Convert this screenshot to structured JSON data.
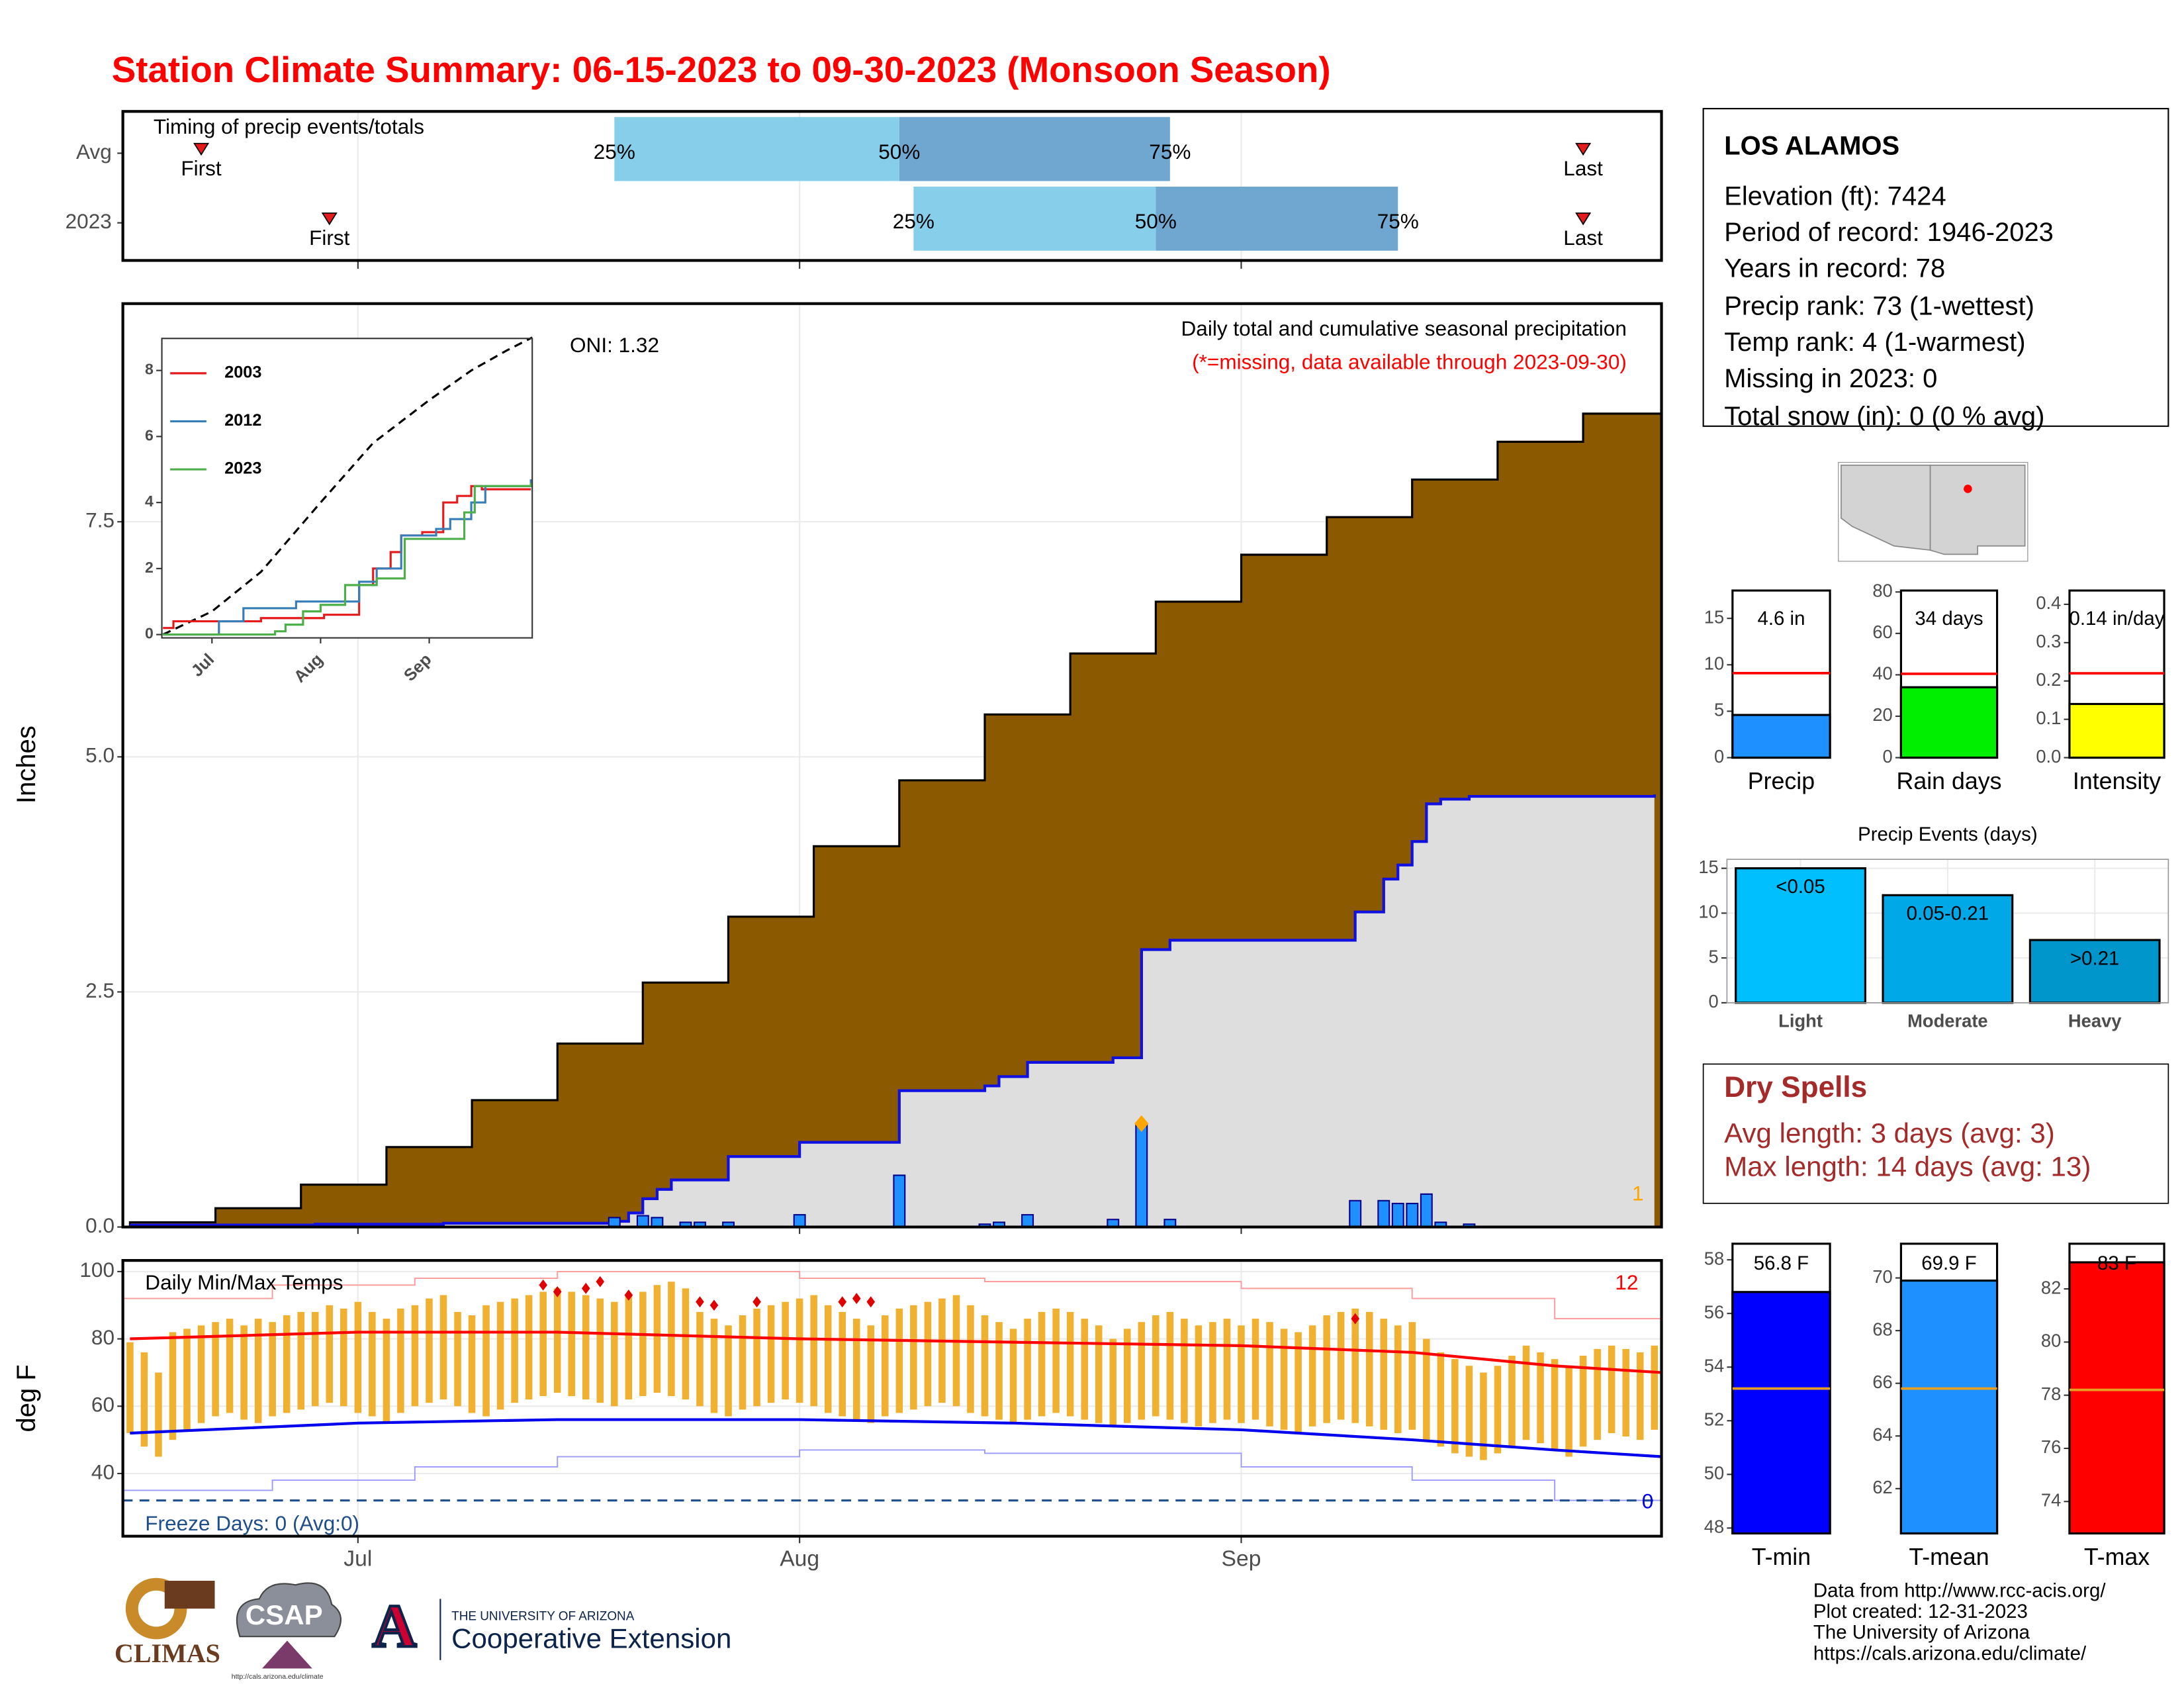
{
  "title": "Station Climate Summary: 06-15-2023 to 09-30-2023 (Monsoon Season)",
  "station_box": {
    "name": "LOS ALAMOS",
    "lines": [
      "Elevation (ft): 7424",
      "Period of record: 1946-2023",
      "Years in record: 78",
      "Precip rank: 73 (1-wettest)",
      "Temp rank: 4 (1-warmest)",
      "Missing in 2023: 0",
      "Total snow (in): 0 (0 % avg)"
    ]
  },
  "dry_spells": {
    "title": "Dry Spells",
    "lines": [
      "Avg length: 3 days (avg: 3)",
      "Max length: 14 days (avg: 13)"
    ]
  },
  "footer": [
    "Data from http://www.rcc-acis.org/",
    "Plot created: 12-31-2023",
    "The University of Arizona",
    "https://cals.arizona.edu/climate/"
  ],
  "logos": {
    "climas": "CLIMAS",
    "csap": "CSAP",
    "csap_url": "http://cals.arizona.edu/climate",
    "arizona": "A",
    "university": "THE UNIVERSITY OF ARIZONA",
    "extension": "Cooperative Extension"
  },
  "chart_data": [
    {
      "type": "timing",
      "title": "Timing of precip events/totals",
      "xlim": [
        -0.5,
        107.5
      ],
      "categories": [
        "Avg",
        "2023"
      ],
      "labels": {
        "first": "First",
        "p25": "25%",
        "p50": "50%",
        "p75": "75%",
        "last": "Last"
      },
      "rows": [
        {
          "first": 5,
          "p25": 34,
          "p50": 54,
          "p75": 73,
          "last": 102
        },
        {
          "first": 14,
          "p25": 55,
          "p50": 72,
          "p75": 89,
          "last": 102
        }
      ],
      "colors": [
        "#87ceeb",
        "#6fa7d0"
      ],
      "marker_color": "#e41a1c"
    },
    {
      "type": "cumulative",
      "annotation": "Daily total and cumulative seasonal precipitation",
      "note": "(*=missing, data available through 2023-09-30)",
      "oni": "ONI: 1.32",
      "ylabel": "Inches",
      "record_count": 1,
      "xlim": [
        -0.5,
        107.5
      ],
      "ylim": [
        0,
        9.82
      ],
      "yticks": [
        {
          "value": 0,
          "label": "0.0"
        },
        2.5,
        {
          "value": 5,
          "label": "5.0"
        },
        7.5
      ],
      "xticks": [
        {
          "value": 16,
          "label": "Jul"
        },
        {
          "value": 47,
          "label": "Aug"
        },
        {
          "value": 78,
          "label": "Sep"
        }
      ],
      "average": {
        "color": "#8b5a00",
        "x": [
          0,
          6,
          12,
          18,
          24,
          30,
          36,
          42,
          48,
          54,
          60,
          66,
          72,
          78,
          84,
          90,
          96,
          102,
          107.5
        ],
        "values": [
          0.05,
          0.2,
          0.45,
          0.85,
          1.35,
          1.95,
          2.6,
          3.3,
          4.05,
          4.75,
          5.45,
          6.1,
          6.65,
          7.15,
          7.55,
          7.95,
          8.35,
          8.65,
          8.93
        ]
      },
      "observed": {
        "color": "#dedede",
        "line_color": "#1010e0",
        "x": [
          0,
          13,
          22,
          34,
          35,
          36,
          37,
          38,
          42,
          47,
          54,
          60,
          61,
          63,
          69,
          71,
          73,
          86,
          88,
          89,
          90,
          91,
          92,
          94,
          107
        ],
        "values": [
          0.02,
          0.03,
          0.04,
          0.06,
          0.15,
          0.3,
          0.4,
          0.5,
          0.75,
          0.9,
          1.45,
          1.5,
          1.6,
          1.75,
          1.8,
          2.95,
          3.05,
          3.35,
          3.7,
          3.85,
          4.1,
          4.5,
          4.55,
          4.58,
          4.6
        ]
      },
      "daily": {
        "color": "#1e90ff",
        "peak_color": "#ffa500",
        "x": [
          34,
          36,
          37,
          39,
          40,
          42,
          47,
          54,
          60,
          61,
          63,
          69,
          71,
          73,
          86,
          88,
          89,
          90,
          91,
          92,
          94
        ],
        "values": [
          0.1,
          0.12,
          0.1,
          0.05,
          0.05,
          0.05,
          0.13,
          0.55,
          0.03,
          0.05,
          0.13,
          0.08,
          1.1,
          0.08,
          0.28,
          0.28,
          0.25,
          0.25,
          0.35,
          0.05,
          0.03
        ]
      }
    },
    {
      "type": "line",
      "xlim": [
        1.7,
        107.4
      ],
      "ylim": [
        -0.1,
        8.97
      ],
      "yticks": [
        0,
        2,
        4,
        6,
        8
      ],
      "xticks": [
        {
          "value": 16,
          "label": "Jul"
        },
        {
          "value": 47,
          "label": "Aug"
        },
        {
          "value": 78,
          "label": "Sep"
        }
      ],
      "series": [
        {
          "name": "2003",
          "color": "#e41a1c",
          "x": [
            2,
            5,
            30,
            48,
            58,
            62,
            67,
            70,
            76,
            82,
            86,
            90,
            93,
            107
          ],
          "values": [
            0.2,
            0.4,
            0.5,
            0.6,
            1.5,
            2.0,
            2.5,
            3.0,
            3.1,
            4.0,
            4.2,
            4.5,
            4.4,
            4.4
          ]
        },
        {
          "name": "2012",
          "color": "#377eb8",
          "x": [
            2,
            18,
            25,
            40,
            58,
            63,
            70,
            80,
            84,
            90,
            94,
            107
          ],
          "values": [
            0,
            0.4,
            0.8,
            1.0,
            1.6,
            2.0,
            3.0,
            3.2,
            3.5,
            4.0,
            4.5,
            4.7
          ]
        },
        {
          "name": "2023",
          "color": "#4daf4a",
          "x": [
            2,
            34,
            37,
            42,
            47,
            54,
            63,
            71,
            88,
            91,
            107
          ],
          "values": [
            0,
            0.1,
            0.3,
            0.7,
            0.9,
            1.5,
            1.7,
            2.9,
            3.7,
            4.5,
            4.6
          ]
        }
      ],
      "average": {
        "color": "#000000",
        "x": [
          2,
          16,
          30,
          47,
          62,
          78,
          90,
          100,
          107.4
        ],
        "values": [
          0,
          0.7,
          1.9,
          4.0,
          5.8,
          7.1,
          8.0,
          8.6,
          9.0
        ]
      }
    },
    {
      "type": "temperature",
      "title": "Daily Min/Max Temps",
      "ylabel": "deg F",
      "record_count": 12,
      "xlim": [
        -0.5,
        107.5
      ],
      "ylim": [
        21.38,
        103.31
      ],
      "yticks": [
        40,
        60,
        80,
        100
      ],
      "xticks": [
        {
          "value": 16,
          "label": "Jul"
        },
        {
          "value": 47,
          "label": "Aug"
        },
        {
          "value": 78,
          "label": "Sep"
        }
      ],
      "daily": {
        "color": "#f0b030",
        "x": [
          0,
          1,
          2,
          3,
          4,
          5,
          6,
          7,
          8,
          9,
          10,
          11,
          12,
          13,
          14,
          15,
          16,
          17,
          18,
          19,
          20,
          21,
          22,
          23,
          24,
          25,
          26,
          27,
          28,
          29,
          30,
          31,
          32,
          33,
          34,
          35,
          36,
          37,
          38,
          39,
          40,
          41,
          42,
          43,
          44,
          45,
          46,
          47,
          48,
          49,
          50,
          51,
          52,
          53,
          54,
          55,
          56,
          57,
          58,
          59,
          60,
          61,
          62,
          63,
          64,
          65,
          66,
          67,
          68,
          69,
          70,
          71,
          72,
          73,
          74,
          75,
          76,
          77,
          78,
          79,
          80,
          81,
          82,
          83,
          84,
          85,
          86,
          87,
          88,
          89,
          90,
          91,
          92,
          93,
          94,
          95,
          96,
          97,
          98,
          99,
          100,
          101,
          102,
          103,
          104,
          105,
          106,
          107
        ],
        "max": [
          79,
          76,
          70,
          82,
          83,
          84,
          85,
          86,
          84,
          86,
          85,
          87,
          88,
          88,
          90,
          89,
          91,
          88,
          86,
          89,
          90,
          92,
          93,
          88,
          87,
          90,
          91,
          92,
          93,
          94,
          95,
          94,
          93,
          92,
          91,
          93,
          94,
          96,
          97,
          95,
          88,
          86,
          84,
          87,
          89,
          90,
          91,
          92,
          93,
          90,
          88,
          86,
          84,
          87,
          89,
          90,
          91,
          92,
          93,
          90,
          87,
          85,
          83,
          86,
          88,
          89,
          88,
          86,
          84,
          80,
          83,
          85,
          87,
          88,
          86,
          84,
          85,
          86,
          84,
          86,
          85,
          83,
          82,
          84,
          87,
          88,
          89,
          88,
          86,
          84,
          85,
          80,
          76,
          74,
          72,
          70,
          72,
          75,
          78,
          76,
          74,
          72,
          75,
          77,
          78,
          77,
          76,
          78
        ],
        "min": [
          52,
          48,
          45,
          50,
          53,
          55,
          57,
          58,
          56,
          55,
          57,
          58,
          59,
          60,
          61,
          60,
          58,
          57,
          55,
          58,
          60,
          61,
          62,
          60,
          58,
          57,
          59,
          61,
          62,
          63,
          64,
          63,
          62,
          61,
          60,
          62,
          63,
          64,
          63,
          62,
          60,
          58,
          57,
          59,
          60,
          61,
          62,
          61,
          60,
          58,
          57,
          56,
          55,
          57,
          58,
          59,
          60,
          61,
          60,
          58,
          57,
          56,
          55,
          56,
          57,
          58,
          57,
          56,
          55,
          54,
          55,
          56,
          57,
          56,
          55,
          54,
          55,
          56,
          55,
          56,
          54,
          53,
          52,
          54,
          55,
          56,
          55,
          54,
          53,
          52,
          53,
          50,
          48,
          46,
          45,
          44,
          46,
          48,
          50,
          49,
          47,
          45,
          48,
          50,
          52,
          51,
          50,
          53
        ]
      },
      "average_max": {
        "color": "#ff0000",
        "x": [
          0,
          16,
          30,
          47,
          62,
          78,
          90,
          100,
          107.5
        ],
        "values": [
          80,
          82,
          82,
          80,
          79,
          78,
          76,
          72,
          70
        ]
      },
      "average_min": {
        "color": "#0000ee",
        "x": [
          0,
          16,
          30,
          47,
          62,
          78,
          90,
          100,
          107.5
        ],
        "values": [
          52,
          55,
          56,
          56,
          55,
          53,
          50,
          47,
          45
        ]
      },
      "record_max": {
        "color": "#ff9a9a",
        "x": [
          -0.5,
          10,
          20,
          30,
          47,
          60,
          78,
          90,
          100,
          107.5
        ],
        "values": [
          92,
          96,
          98,
          100,
          98,
          97,
          95,
          92,
          86,
          83
        ]
      },
      "record_min": {
        "color": "#9a9aff",
        "x": [
          -0.5,
          10,
          20,
          30,
          47,
          60,
          78,
          90,
          100,
          107.5
        ],
        "values": [
          35,
          38,
          42,
          45,
          47,
          46,
          42,
          38,
          32,
          28
        ]
      },
      "record_highs": {
        "color": "#e00000",
        "x": [
          29,
          30,
          32,
          33,
          35,
          40,
          41,
          44,
          50,
          51,
          52,
          86
        ],
        "values": [
          96,
          94,
          95,
          97,
          93,
          91,
          90,
          91,
          91,
          92,
          91,
          86
        ]
      },
      "freeze": {
        "value": 32,
        "label": "Freeze Days: 0 (Avg:0)",
        "count": 0,
        "color": "#1f4e8c"
      }
    },
    {
      "type": "summary",
      "xlabel": "Precip",
      "values": [
        4.6
      ],
      "value_labels": [
        "4.6 in"
      ],
      "average": 9.1,
      "color": "#1e90ff",
      "avg_color": "#ff0000",
      "ylim": [
        0,
        18
      ],
      "yticks": [
        0,
        5,
        10,
        15
      ]
    },
    {
      "type": "summary",
      "xlabel": "Rain days",
      "values": [
        34
      ],
      "value_labels": [
        "34 days"
      ],
      "average": 40.5,
      "color": "#00ee00",
      "avg_color": "#ff0000",
      "ylim": [
        0,
        80.7
      ],
      "yticks": [
        0,
        20,
        40,
        60,
        80
      ]
    },
    {
      "type": "summary",
      "xlabel": "Intensity",
      "values": [
        0.14
      ],
      "value_labels": [
        "0.14 in/day"
      ],
      "average": 0.22,
      "color": "#ffff00",
      "avg_color": "#ff0000",
      "ylim": [
        0,
        0.436
      ],
      "yticks": [
        {
          "value": 0,
          "label": "0.0"
        },
        0.1,
        0.2,
        0.3,
        0.4
      ]
    },
    {
      "type": "bar",
      "title": "Precip Events (days)",
      "categories": [
        "Light",
        "Moderate",
        "Heavy"
      ],
      "bin_labels": [
        "<0.05",
        "0.05-0.21",
        ">0.21"
      ],
      "values": [
        15,
        12,
        7
      ],
      "colors": [
        "#00bfff",
        "#00a8e8",
        "#0096cc"
      ],
      "ylim": [
        0,
        16
      ],
      "yticks": [
        0,
        5,
        10,
        15
      ],
      "grid": true
    },
    {
      "type": "summary",
      "xlabel": "T-min",
      "values": [
        56.8
      ],
      "value_labels": [
        "56.8 F"
      ],
      "average": 53.2,
      "color": "#0000ff",
      "avg_color": "#e8a020",
      "ylim": [
        47.8,
        58.6
      ],
      "yticks": [
        48,
        50,
        52,
        54,
        56,
        58
      ]
    },
    {
      "type": "summary",
      "xlabel": "T-mean",
      "values": [
        69.9
      ],
      "value_labels": [
        "69.9 F"
      ],
      "average": 65.8,
      "color": "#1e90ff",
      "avg_color": "#e8a020",
      "ylim": [
        60.3,
        71.3
      ],
      "yticks": [
        62,
        64,
        66,
        68,
        70
      ]
    },
    {
      "type": "summary",
      "xlabel": "T-max",
      "values": [
        83
      ],
      "value_labels": [
        "83 F"
      ],
      "average": 78.2,
      "color": "#ff0000",
      "avg_color": "#e8a020",
      "ylim": [
        72.8,
        83.7
      ],
      "yticks": [
        74,
        76,
        78,
        80,
        82
      ]
    }
  ]
}
